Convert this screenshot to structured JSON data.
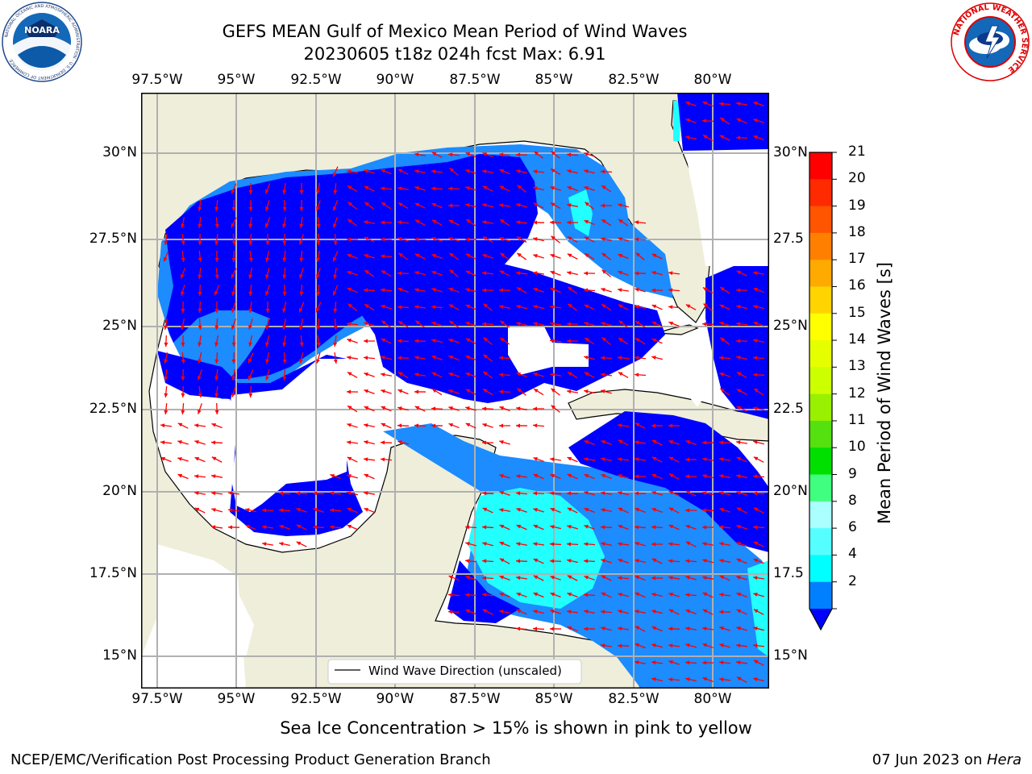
{
  "title_line1": "GEFS MEAN Gulf of Mexico Mean Period of Wind Waves",
  "title_line2": "20230605 t18z 024h fcst   Max: 6.91",
  "lon_ticks": [
    "97.5°W",
    "95°W",
    "92.5°W",
    "90°W",
    "87.5°W",
    "85°W",
    "82.5°W",
    "80°W"
  ],
  "lat_ticks_left": [
    "30°N",
    "27.5°N",
    "25°N",
    "22.5°N",
    "20°N",
    "17.5°N",
    "15°N"
  ],
  "lat_ticks_right": [
    "30°N",
    "27.5",
    "25°N",
    "22.5",
    "20°N",
    "17.5",
    "15°N"
  ],
  "legend_label": "Wind Wave Direction (unscaled)",
  "colorbar": {
    "label": "Mean Period of Wind Waves [s]",
    "ticks": [
      "21",
      "20",
      "19",
      "18",
      "17",
      "16",
      "15",
      "14",
      "13",
      "12",
      "11",
      "10",
      "9",
      "8",
      "6",
      "4",
      "2"
    ],
    "colors": [
      "#ff0000",
      "#ff2a00",
      "#ff5500",
      "#ff8000",
      "#ffaa00",
      "#ffd400",
      "#ffff00",
      "#e6ff00",
      "#ccff00",
      "#99f000",
      "#55e010",
      "#00e000",
      "#40ff80",
      "#aaffff",
      "#55ffff",
      "#00ffff",
      "#0080ff"
    ],
    "underflow_color": "#0000ff"
  },
  "map_colors": {
    "land": "#efeedb",
    "blue": "#0000ff",
    "medium_blue": "#1c8cff",
    "cyan": "#22ffff",
    "arrow": "#ff0000"
  },
  "sea_ice_note": "Sea Ice Concentration > 15% is shown in pink to yellow",
  "footer_left": "NCEP/EMC/Verification Post Processing Product Generation Branch",
  "footer_date": "07 Jun 2023 on ",
  "footer_host": "Hera",
  "logos": {
    "left": "NOARA",
    "left_ring": "NATIONAL OCEANIC AND ATMOSPHERIC ADMINISTRATION · U.S. DEPARTMENT OF COMMERCE",
    "right_ring": "NATIONAL WEATHER SERVICE"
  }
}
